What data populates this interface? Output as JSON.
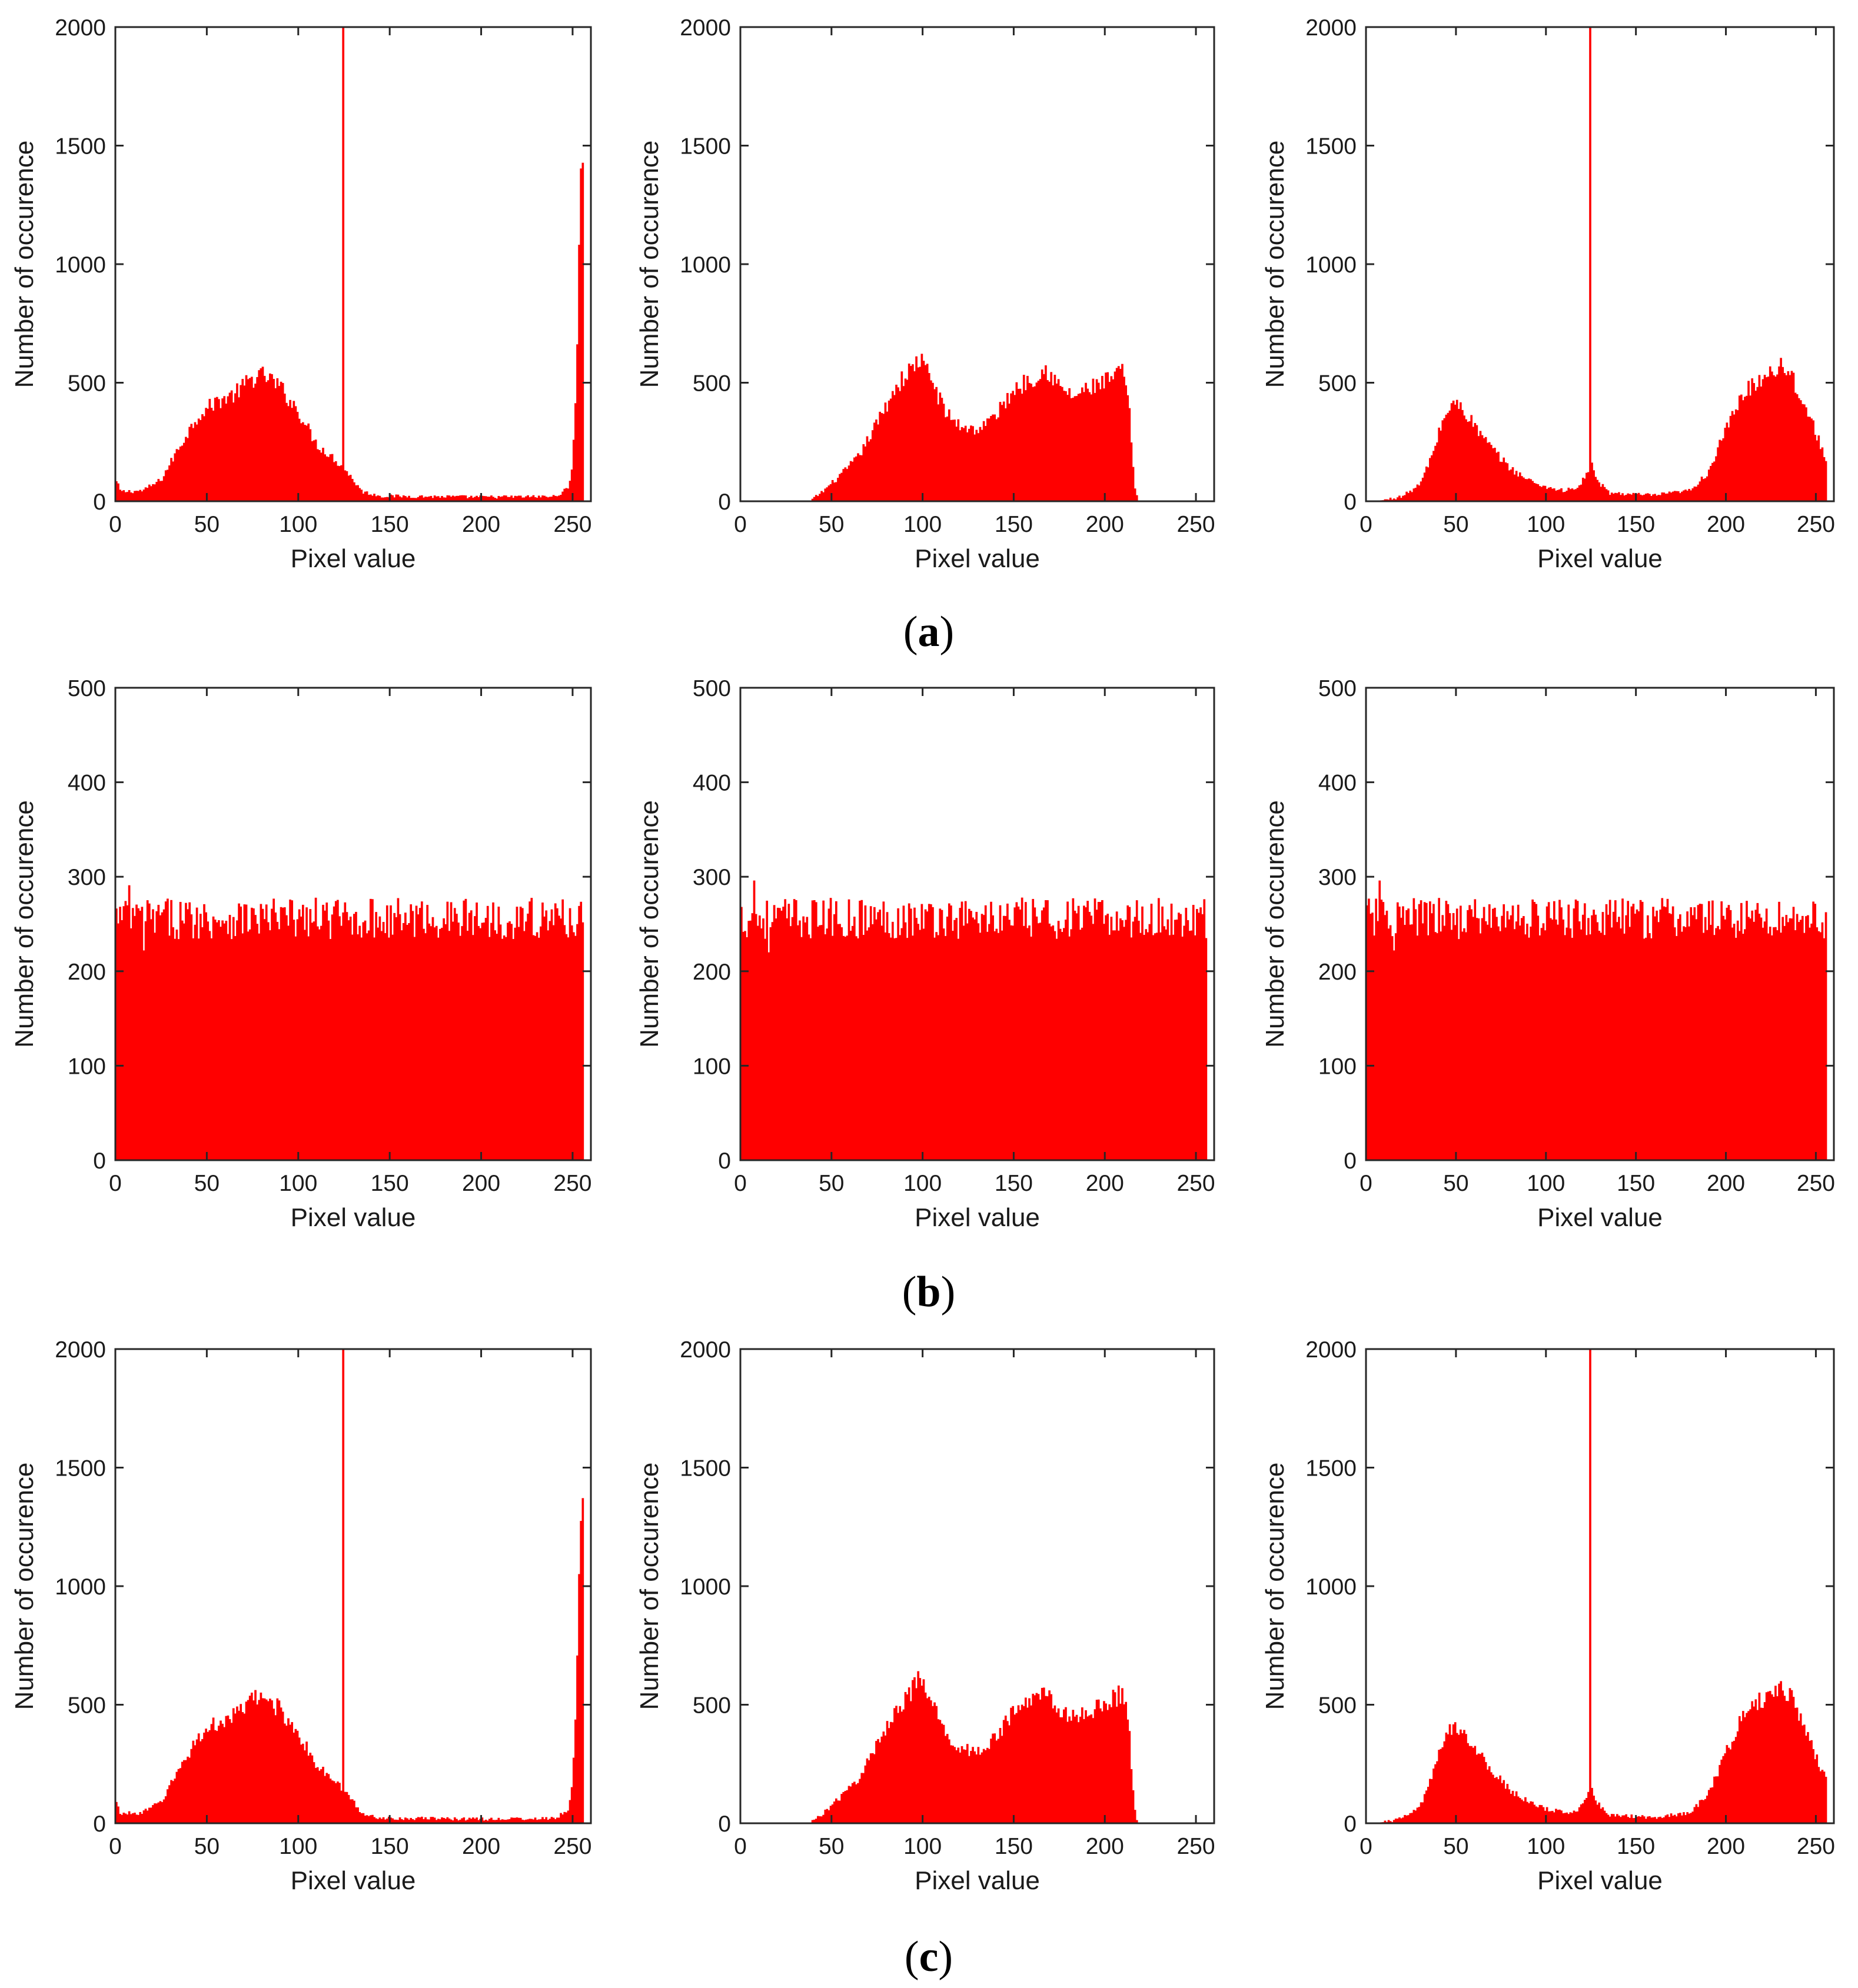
{
  "figure": {
    "captions": [
      {
        "open": "(",
        "letter": "a",
        "close": ")"
      },
      {
        "open": "(",
        "letter": "b",
        "close": ")"
      },
      {
        "open": "(",
        "letter": "c",
        "close": ")"
      }
    ]
  },
  "colors": {
    "bar": "#ff0000",
    "axis": "#262626",
    "text": "#1a1a1a"
  },
  "chart_data": [
    {
      "id": "a-left",
      "type": "bar",
      "panel_group": "a",
      "xlabel": "Pixel value",
      "ylabel": "Number of occurence",
      "xlim": [
        0,
        260
      ],
      "ylim": [
        0,
        2000
      ],
      "xticks": [
        0,
        50,
        100,
        150,
        200,
        250
      ],
      "yticks": [
        0,
        500,
        1000,
        1500,
        2000
      ],
      "profile": [
        [
          0,
          90
        ],
        [
          3,
          40
        ],
        [
          15,
          45
        ],
        [
          25,
          90
        ],
        [
          35,
          230
        ],
        [
          45,
          360
        ],
        [
          55,
          420
        ],
        [
          65,
          450
        ],
        [
          75,
          520
        ],
        [
          82,
          530
        ],
        [
          90,
          480
        ],
        [
          100,
          380
        ],
        [
          110,
          240
        ],
        [
          118,
          190
        ],
        [
          125,
          140
        ],
        [
          130,
          90
        ],
        [
          135,
          40
        ],
        [
          145,
          22
        ],
        [
          200,
          18
        ],
        [
          240,
          20
        ],
        [
          248,
          55
        ],
        [
          250,
          180
        ],
        [
          252,
          500
        ],
        [
          253,
          900
        ],
        [
          254,
          1300
        ],
        [
          255,
          1420
        ]
      ],
      "spikes": [
        [
          124,
          2000
        ]
      ]
    },
    {
      "id": "a-middle",
      "type": "bar",
      "panel_group": "a",
      "xlabel": "Pixel value",
      "ylabel": "Number of occurence",
      "xlim": [
        0,
        260
      ],
      "ylim": [
        0,
        2000
      ],
      "xticks": [
        0,
        50,
        100,
        150,
        200,
        250
      ],
      "yticks": [
        0,
        500,
        1000,
        1500,
        2000
      ],
      "profile": [
        [
          0,
          0
        ],
        [
          38,
          0
        ],
        [
          45,
          40
        ],
        [
          55,
          110
        ],
        [
          65,
          190
        ],
        [
          75,
          330
        ],
        [
          85,
          480
        ],
        [
          92,
          540
        ],
        [
          98,
          600
        ],
        [
          104,
          530
        ],
        [
          112,
          380
        ],
        [
          120,
          320
        ],
        [
          130,
          300
        ],
        [
          140,
          360
        ],
        [
          150,
          470
        ],
        [
          160,
          520
        ],
        [
          168,
          560
        ],
        [
          175,
          480
        ],
        [
          183,
          440
        ],
        [
          190,
          470
        ],
        [
          200,
          500
        ],
        [
          210,
          550
        ],
        [
          213,
          420
        ],
        [
          216,
          80
        ],
        [
          218,
          0
        ],
        [
          260,
          0
        ]
      ],
      "spikes": []
    },
    {
      "id": "a-right",
      "type": "bar",
      "panel_group": "a",
      "xlabel": "Pixel value",
      "ylabel": "Number of occurence",
      "xlim": [
        0,
        260
      ],
      "ylim": [
        0,
        2000
      ],
      "xticks": [
        0,
        50,
        100,
        150,
        200,
        250
      ],
      "yticks": [
        0,
        500,
        1000,
        1500,
        2000
      ],
      "profile": [
        [
          0,
          0
        ],
        [
          10,
          5
        ],
        [
          20,
          20
        ],
        [
          30,
          70
        ],
        [
          37,
          200
        ],
        [
          43,
          350
        ],
        [
          48,
          410
        ],
        [
          53,
          400
        ],
        [
          60,
          320
        ],
        [
          70,
          220
        ],
        [
          80,
          140
        ],
        [
          90,
          90
        ],
        [
          100,
          60
        ],
        [
          110,
          45
        ],
        [
          118,
          55
        ],
        [
          122,
          110
        ],
        [
          125,
          160
        ],
        [
          128,
          90
        ],
        [
          135,
          35
        ],
        [
          160,
          25
        ],
        [
          180,
          45
        ],
        [
          190,
          120
        ],
        [
          200,
          300
        ],
        [
          210,
          460
        ],
        [
          220,
          520
        ],
        [
          230,
          580
        ],
        [
          236,
          540
        ],
        [
          245,
          380
        ],
        [
          252,
          250
        ],
        [
          256,
          170
        ]
      ],
      "spikes": [
        [
          124,
          2000
        ]
      ]
    },
    {
      "id": "b-left",
      "type": "bar",
      "panel_group": "b",
      "xlabel": "Pixel value",
      "ylabel": "Number of occurence",
      "xlim": [
        0,
        260
      ],
      "ylim": [
        0,
        500
      ],
      "xticks": [
        0,
        50,
        100,
        150,
        200,
        250
      ],
      "yticks": [
        0,
        100,
        200,
        300,
        400,
        500
      ],
      "uniform": {
        "mean": 256,
        "spread": 22,
        "max": 291,
        "min": 222
      }
    },
    {
      "id": "b-middle",
      "type": "bar",
      "panel_group": "b",
      "xlabel": "Pixel value",
      "ylabel": "Number of occurence",
      "xlim": [
        0,
        260
      ],
      "ylim": [
        0,
        500
      ],
      "xticks": [
        0,
        50,
        100,
        150,
        200,
        250
      ],
      "yticks": [
        0,
        100,
        200,
        300,
        400,
        500
      ],
      "uniform": {
        "mean": 256,
        "spread": 22,
        "max": 296,
        "min": 220
      }
    },
    {
      "id": "b-right",
      "type": "bar",
      "panel_group": "b",
      "xlabel": "Pixel value",
      "ylabel": "Number of occurence",
      "xlim": [
        0,
        260
      ],
      "ylim": [
        0,
        500
      ],
      "xticks": [
        0,
        50,
        100,
        150,
        200,
        250
      ],
      "yticks": [
        0,
        100,
        200,
        300,
        400,
        500
      ],
      "uniform": {
        "mean": 256,
        "spread": 22,
        "max": 296,
        "min": 222
      }
    },
    {
      "id": "c-left",
      "type": "bar",
      "panel_group": "c",
      "xlabel": "Pixel value",
      "ylabel": "Number of occurence",
      "xlim": [
        0,
        260
      ],
      "ylim": [
        0,
        2000
      ],
      "xticks": [
        0,
        50,
        100,
        150,
        200,
        250
      ],
      "yticks": [
        0,
        500,
        1000,
        1500,
        2000
      ],
      "profile": [
        [
          0,
          90
        ],
        [
          3,
          40
        ],
        [
          15,
          45
        ],
        [
          25,
          90
        ],
        [
          35,
          230
        ],
        [
          45,
          360
        ],
        [
          55,
          420
        ],
        [
          65,
          450
        ],
        [
          75,
          520
        ],
        [
          82,
          530
        ],
        [
          90,
          480
        ],
        [
          100,
          380
        ],
        [
          110,
          240
        ],
        [
          118,
          190
        ],
        [
          125,
          140
        ],
        [
          130,
          90
        ],
        [
          135,
          40
        ],
        [
          145,
          22
        ],
        [
          200,
          18
        ],
        [
          240,
          20
        ],
        [
          248,
          55
        ],
        [
          250,
          180
        ],
        [
          252,
          500
        ],
        [
          253,
          900
        ],
        [
          254,
          1300
        ],
        [
          255,
          1420
        ]
      ],
      "spikes": [
        [
          124,
          2000
        ]
      ]
    },
    {
      "id": "c-middle",
      "type": "bar",
      "panel_group": "c",
      "xlabel": "Pixel value",
      "ylabel": "Number of occurence",
      "xlim": [
        0,
        260
      ],
      "ylim": [
        0,
        2000
      ],
      "xticks": [
        0,
        50,
        100,
        150,
        200,
        250
      ],
      "yticks": [
        0,
        500,
        1000,
        1500,
        2000
      ],
      "profile": [
        [
          0,
          0
        ],
        [
          38,
          0
        ],
        [
          45,
          40
        ],
        [
          55,
          110
        ],
        [
          65,
          190
        ],
        [
          75,
          330
        ],
        [
          85,
          480
        ],
        [
          92,
          540
        ],
        [
          98,
          600
        ],
        [
          104,
          530
        ],
        [
          112,
          380
        ],
        [
          120,
          320
        ],
        [
          130,
          300
        ],
        [
          140,
          360
        ],
        [
          150,
          470
        ],
        [
          160,
          520
        ],
        [
          168,
          560
        ],
        [
          175,
          480
        ],
        [
          183,
          440
        ],
        [
          190,
          470
        ],
        [
          200,
          500
        ],
        [
          210,
          550
        ],
        [
          213,
          420
        ],
        [
          216,
          80
        ],
        [
          218,
          0
        ],
        [
          260,
          0
        ]
      ],
      "spikes": []
    },
    {
      "id": "c-right",
      "type": "bar",
      "panel_group": "c",
      "xlabel": "Pixel value",
      "ylabel": "Number of occurence",
      "xlim": [
        0,
        260
      ],
      "ylim": [
        0,
        2000
      ],
      "xticks": [
        0,
        50,
        100,
        150,
        200,
        250
      ],
      "yticks": [
        0,
        500,
        1000,
        1500,
        2000
      ],
      "profile": [
        [
          0,
          0
        ],
        [
          10,
          5
        ],
        [
          20,
          20
        ],
        [
          30,
          70
        ],
        [
          37,
          200
        ],
        [
          43,
          350
        ],
        [
          48,
          410
        ],
        [
          53,
          400
        ],
        [
          60,
          320
        ],
        [
          70,
          220
        ],
        [
          80,
          140
        ],
        [
          90,
          90
        ],
        [
          100,
          60
        ],
        [
          110,
          45
        ],
        [
          118,
          55
        ],
        [
          122,
          110
        ],
        [
          125,
          160
        ],
        [
          128,
          90
        ],
        [
          135,
          35
        ],
        [
          160,
          25
        ],
        [
          180,
          45
        ],
        [
          190,
          120
        ],
        [
          200,
          300
        ],
        [
          210,
          460
        ],
        [
          220,
          520
        ],
        [
          230,
          580
        ],
        [
          236,
          540
        ],
        [
          245,
          380
        ],
        [
          252,
          250
        ],
        [
          256,
          170
        ]
      ],
      "spikes": [
        [
          124,
          2000
        ]
      ]
    }
  ]
}
